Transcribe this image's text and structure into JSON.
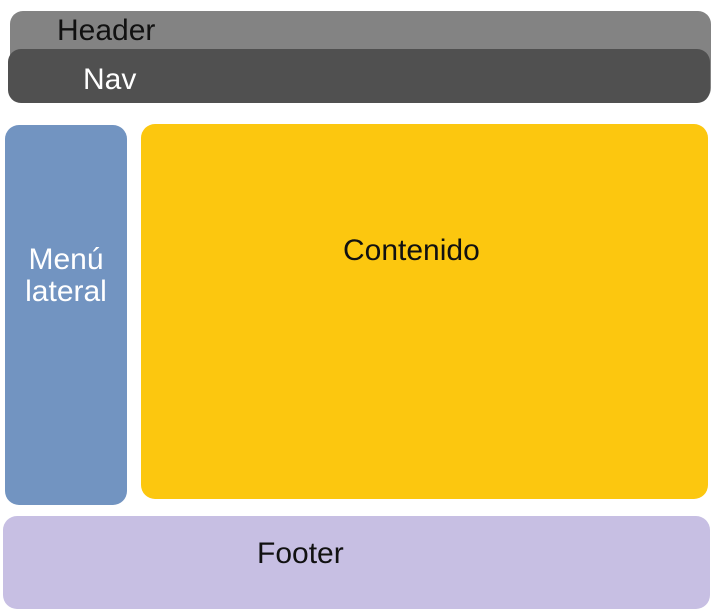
{
  "colors": {
    "header": "#838383",
    "nav": "#505050",
    "sidebar": "#7294c1",
    "content": "#fcc70f",
    "footer": "#c7bfe3"
  },
  "header": {
    "label": "Header"
  },
  "nav": {
    "label": "Nav"
  },
  "sidebar": {
    "label_line1": "Menú",
    "label_line2": "lateral"
  },
  "content": {
    "label": "Contenido"
  },
  "footer": {
    "label": "Footer"
  }
}
